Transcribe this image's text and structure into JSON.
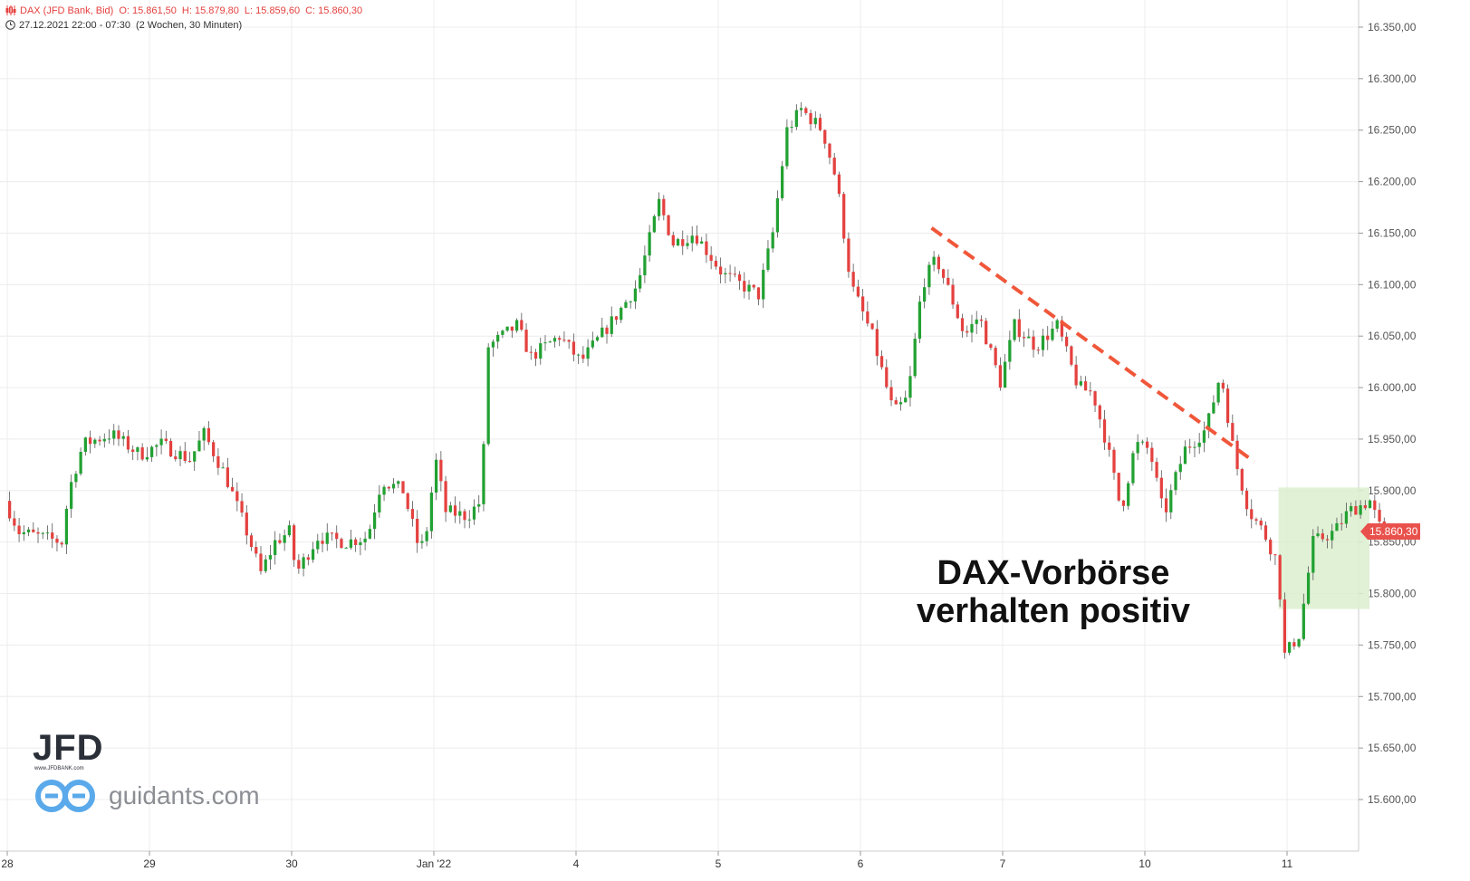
{
  "header": {
    "symbol": "DAX (JFD Bank, Bid)",
    "open": "O: 15.861,50",
    "high": "H: 15.879,80",
    "low": "L: 15.859,60",
    "close": "C: 15.860,30",
    "period": "27.12.2021 22:00 - 07:30",
    "range": "(2 Wochen, 30 Minuten)"
  },
  "annotation": {
    "line1": "DAX-Vorbörse",
    "line2": "verhalten positiv"
  },
  "logos": {
    "jfd": "JFD",
    "jfd_sub": "www.JFDBANK.com",
    "guidants": "guidants.com"
  },
  "colors": {
    "up": "#22a132",
    "down": "#e4413f",
    "trendline": "#f0573a",
    "zone": "#dceecf",
    "grid": "#ececec",
    "last_price": "#e9514c"
  },
  "chart_data": {
    "type": "candlestick",
    "ylim": [
      15560,
      16375
    ],
    "y_ticks": [
      {
        "value": 16350,
        "label": "16.350,00"
      },
      {
        "value": 16300,
        "label": "16.300,00"
      },
      {
        "value": 16250,
        "label": "16.250,00"
      },
      {
        "value": 16200,
        "label": "16.200,00"
      },
      {
        "value": 16150,
        "label": "16.150,00"
      },
      {
        "value": 16100,
        "label": "16.100,00"
      },
      {
        "value": 16050,
        "label": "16.050,00"
      },
      {
        "value": 16000,
        "label": "16.000,00"
      },
      {
        "value": 15950,
        "label": "15.950,00"
      },
      {
        "value": 15900,
        "label": "15.900,00"
      },
      {
        "value": 15850,
        "label": "15.850,00"
      },
      {
        "value": 15800,
        "label": "15.800,00"
      },
      {
        "value": 15750,
        "label": "15.750,00"
      },
      {
        "value": 15700,
        "label": "15.700,00"
      },
      {
        "value": 15650,
        "label": "15.650,00"
      },
      {
        "value": 15600,
        "label": "15.600,00"
      }
    ],
    "x_ticks": [
      {
        "session": 0,
        "label": "28"
      },
      {
        "session": 1,
        "label": "29"
      },
      {
        "session": 2,
        "label": "30"
      },
      {
        "session": 3,
        "label": "Jan '22"
      },
      {
        "session": 4,
        "label": "4"
      },
      {
        "session": 5,
        "label": "5"
      },
      {
        "session": 6,
        "label": "6"
      },
      {
        "session": 7,
        "label": "7"
      },
      {
        "session": 8,
        "label": "10"
      },
      {
        "session": 9,
        "label": "11"
      }
    ],
    "sessions": 9.72,
    "candles_per_session": 30,
    "waypoints": [
      [
        0.0,
        15890
      ],
      [
        0.1,
        15860
      ],
      [
        0.25,
        15855
      ],
      [
        0.4,
        15850
      ],
      [
        0.45,
        15900
      ],
      [
        0.55,
        15945
      ],
      [
        0.75,
        15955
      ],
      [
        0.95,
        15935
      ],
      [
        1.1,
        15945
      ],
      [
        1.3,
        15930
      ],
      [
        1.4,
        15955
      ],
      [
        1.55,
        15915
      ],
      [
        1.7,
        15860
      ],
      [
        1.8,
        15820
      ],
      [
        1.9,
        15850
      ],
      [
        2.0,
        15860
      ],
      [
        2.05,
        15820
      ],
      [
        2.2,
        15855
      ],
      [
        2.4,
        15850
      ],
      [
        2.55,
        15855
      ],
      [
        2.65,
        15910
      ],
      [
        2.8,
        15900
      ],
      [
        2.9,
        15850
      ],
      [
        2.95,
        15845
      ],
      [
        3.03,
        15930
      ],
      [
        3.1,
        15880
      ],
      [
        3.25,
        15875
      ],
      [
        3.35,
        15890
      ],
      [
        3.4,
        16040
      ],
      [
        3.6,
        16060
      ],
      [
        3.7,
        16030
      ],
      [
        3.9,
        16050
      ],
      [
        4.05,
        16025
      ],
      [
        4.3,
        16070
      ],
      [
        4.45,
        16100
      ],
      [
        4.6,
        16180
      ],
      [
        4.7,
        16140
      ],
      [
        4.85,
        16150
      ],
      [
        5.05,
        16110
      ],
      [
        5.3,
        16090
      ],
      [
        5.4,
        16150
      ],
      [
        5.5,
        16250
      ],
      [
        5.6,
        16270
      ],
      [
        5.75,
        16250
      ],
      [
        5.85,
        16200
      ],
      [
        5.95,
        16100
      ],
      [
        6.1,
        16050
      ],
      [
        6.25,
        15975
      ],
      [
        6.35,
        15990
      ],
      [
        6.45,
        16100
      ],
      [
        6.55,
        16125
      ],
      [
        6.65,
        16090
      ],
      [
        6.75,
        16050
      ],
      [
        6.85,
        16070
      ],
      [
        7.0,
        16005
      ],
      [
        7.1,
        16060
      ],
      [
        7.25,
        16040
      ],
      [
        7.4,
        16060
      ],
      [
        7.55,
        16000
      ],
      [
        7.65,
        15995
      ],
      [
        7.75,
        15945
      ],
      [
        7.85,
        15880
      ],
      [
        7.95,
        15945
      ],
      [
        8.05,
        15940
      ],
      [
        8.15,
        15875
      ],
      [
        8.25,
        15920
      ],
      [
        8.3,
        15940
      ],
      [
        8.45,
        15960
      ],
      [
        8.55,
        16015
      ],
      [
        8.65,
        15930
      ],
      [
        8.75,
        15880
      ],
      [
        8.85,
        15860
      ],
      [
        8.95,
        15830
      ],
      [
        9.0,
        15740
      ],
      [
        9.1,
        15760
      ],
      [
        9.2,
        15850
      ],
      [
        9.35,
        15860
      ],
      [
        9.45,
        15880
      ],
      [
        9.6,
        15890
      ],
      [
        9.68,
        15860
      ]
    ],
    "last_price": {
      "value": 15860.3,
      "label": "15.860,30"
    },
    "trendline": [
      [
        6.5,
        16155
      ],
      [
        8.77,
        15928
      ]
    ],
    "zone": {
      "x0": 8.94,
      "x1": 9.58,
      "y_low": 15785,
      "y_high": 15903
    }
  }
}
